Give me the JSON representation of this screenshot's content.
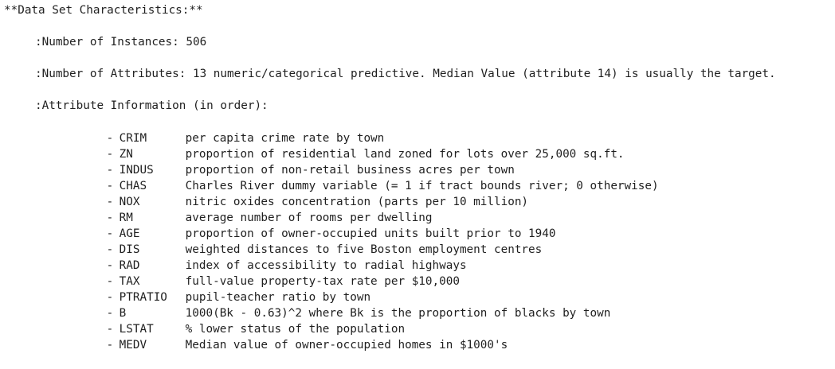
{
  "header": "**Data Set Characteristics:**",
  "instances": ":Number of Instances: 506",
  "attributes_count": ":Number of Attributes: 13 numeric/categorical predictive. Median Value (attribute 14) is usually the target.",
  "attr_info_title": ":Attribute Information (in order):",
  "attributes": [
    {
      "dash": "-",
      "name": "CRIM",
      "desc": "per capita crime rate by town"
    },
    {
      "dash": "-",
      "name": "ZN",
      "desc": "proportion of residential land zoned for lots over 25,000 sq.ft."
    },
    {
      "dash": "-",
      "name": "INDUS",
      "desc": "proportion of non-retail business acres per town"
    },
    {
      "dash": "-",
      "name": "CHAS",
      "desc": "Charles River dummy variable (= 1 if tract bounds river; 0 otherwise)"
    },
    {
      "dash": "-",
      "name": "NOX",
      "desc": "nitric oxides concentration (parts per 10 million)"
    },
    {
      "dash": "-",
      "name": "RM",
      "desc": "average number of rooms per dwelling"
    },
    {
      "dash": "-",
      "name": "AGE",
      "desc": "proportion of owner-occupied units built prior to 1940"
    },
    {
      "dash": "-",
      "name": "DIS",
      "desc": "weighted distances to five Boston employment centres"
    },
    {
      "dash": "-",
      "name": "RAD",
      "desc": "index of accessibility to radial highways"
    },
    {
      "dash": "-",
      "name": "TAX",
      "desc": "full-value property-tax rate per $10,000"
    },
    {
      "dash": "-",
      "name": "PTRATIO",
      "desc": "pupil-teacher ratio by town"
    },
    {
      "dash": "-",
      "name": "B",
      "desc": "1000(Bk - 0.63)^2 where Bk is the proportion of blacks by town"
    },
    {
      "dash": "-",
      "name": "LSTAT",
      "desc": "% lower status of the population"
    },
    {
      "dash": "-",
      "name": "MEDV",
      "desc": "Median value of owner-occupied homes in $1000's"
    }
  ]
}
